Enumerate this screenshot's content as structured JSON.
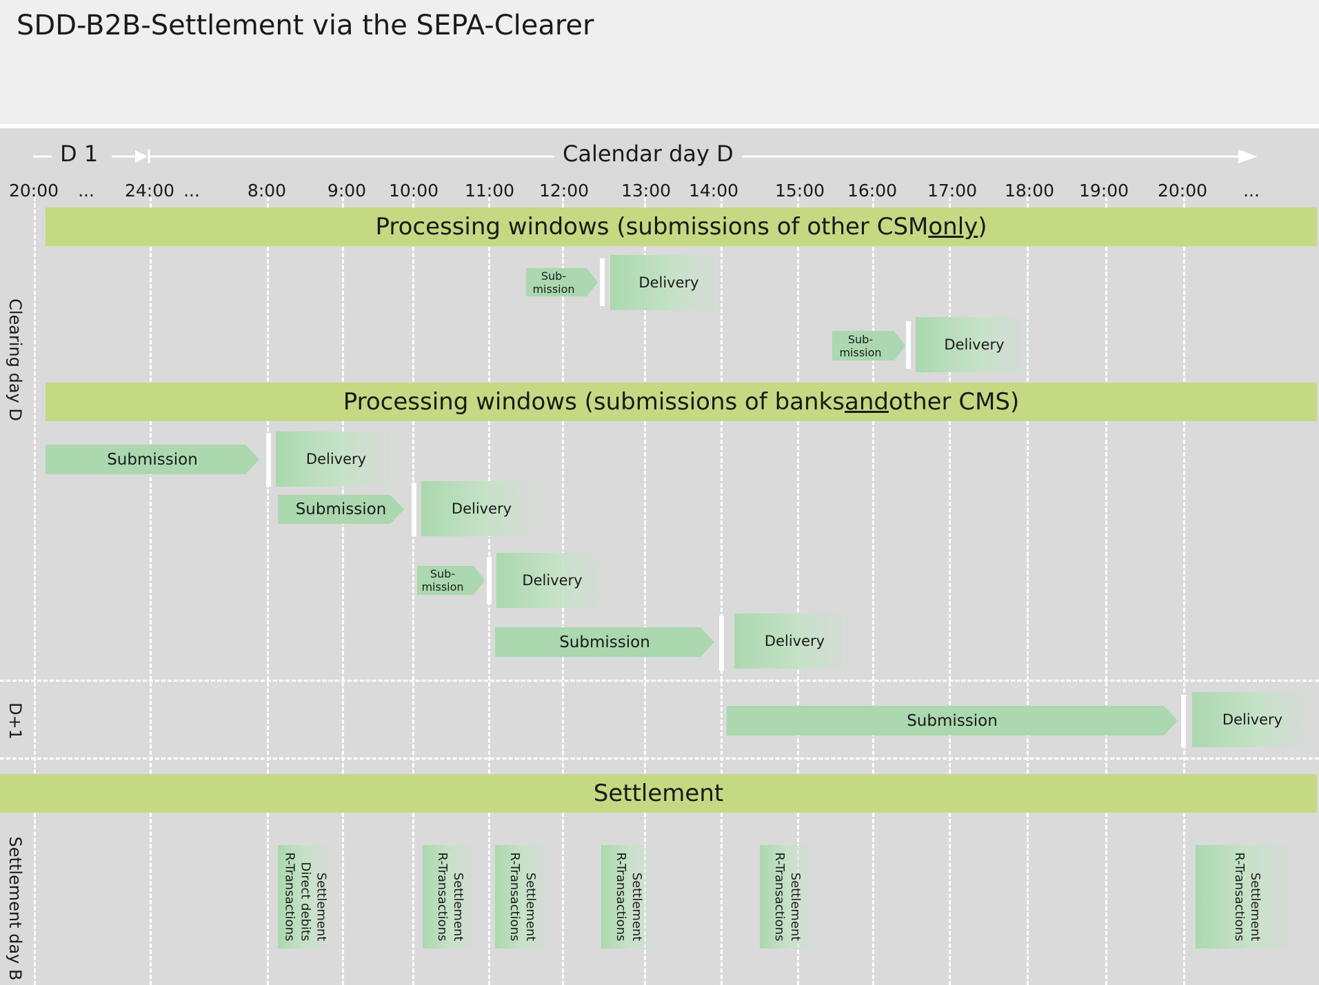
{
  "title": "SDD-B2B-Settlement via the SEPA-Clearer",
  "timeline": {
    "prev_day_label": "D 1",
    "calendar_day_label": "Calendar day D",
    "times": [
      "20:00",
      "...",
      "24:00",
      "...",
      "8:00",
      "9:00",
      "10:00",
      "11:00",
      "12:00",
      "13:00",
      "14:00",
      "15:00",
      "16:00",
      "17:00",
      "18:00",
      "19:00",
      "20:00",
      "..."
    ]
  },
  "row_labels": {
    "clearing": "Clearing day D",
    "d_plus_1": "D+1",
    "settlement": "Settlement day B"
  },
  "bands": {
    "other_csm": {
      "before": "Processing windows (submissions of other CSM ",
      "emphasis": "only",
      "after": ")"
    },
    "banks_and_csm": {
      "before": "Processing windows (submissions of banks ",
      "emphasis": "and",
      "after": " other CMS)"
    },
    "settlement": "Settlement"
  },
  "labels": {
    "submission": "Submission",
    "submission_short_line1": "Sub-",
    "submission_short_line2": "mission",
    "delivery": "Delivery"
  },
  "settlement_items": [
    "Settlement\nDirect debits\nR-Transactions",
    "Settlement\nR-Transactions",
    "Settlement\nR-Transactions",
    "Settlement\nR-Transactions",
    "Settlement\nR-Transactions",
    "Settlement\nR-Transactions"
  ],
  "colors": {
    "band": "#c5d983",
    "submission": "#abd8ae",
    "background": "#dadada",
    "header": "#efefef"
  }
}
